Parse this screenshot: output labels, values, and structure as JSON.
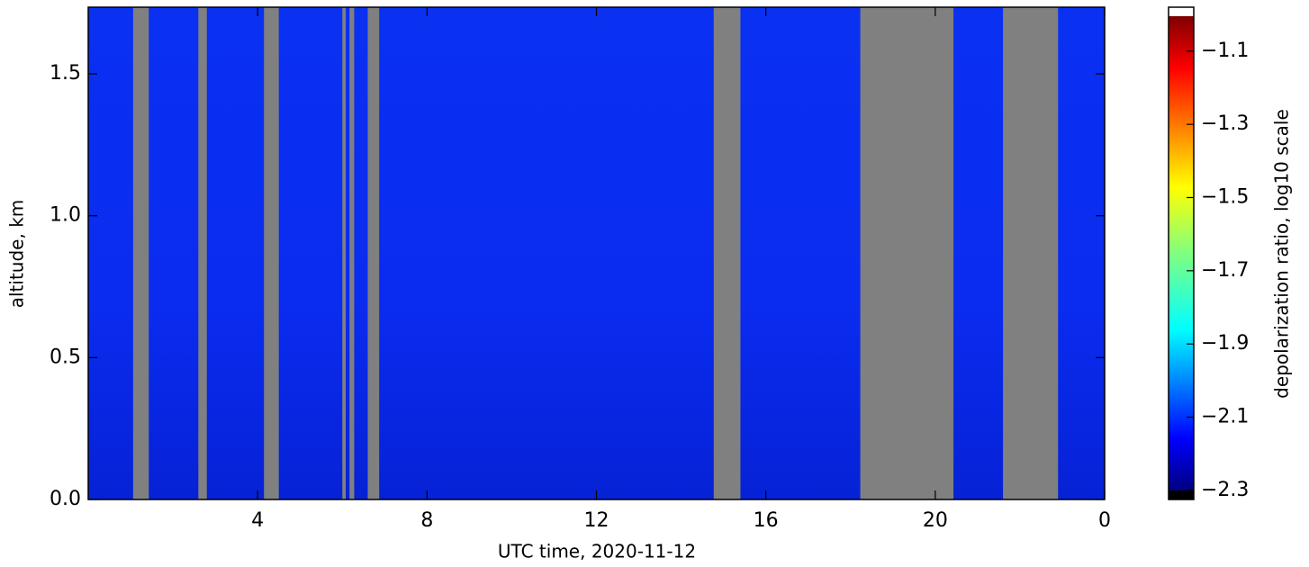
{
  "chart_data": {
    "type": "heatmap",
    "xlabel": "UTC time,  2020-11-12",
    "ylabel": "altitude, km",
    "colorbar_label": "depolarization ratio, log10 scale",
    "colormap": "jet",
    "field_color": "#0a2ff5",
    "no_data_color": "#808080",
    "xlim": [
      0,
      24
    ],
    "xticks": [
      4,
      8,
      12,
      16,
      20,
      {
        "value": 24,
        "label": "0"
      }
    ],
    "ylim": [
      0,
      1.735
    ],
    "yticks": [
      {
        "value": 0,
        "label": "0.0"
      },
      0.5,
      {
        "value": 1,
        "label": "1.0"
      },
      1.5
    ],
    "clim": [
      -2.325,
      -0.98
    ],
    "cticks": [
      {
        "value": -1.1,
        "label": "−1.1"
      },
      {
        "value": -1.3,
        "label": "−1.3"
      },
      {
        "value": -1.5,
        "label": "−1.5"
      },
      {
        "value": -1.7,
        "label": "−1.7"
      },
      {
        "value": -1.9,
        "label": "−1.9"
      },
      {
        "value": -2.1,
        "label": "−2.1"
      },
      {
        "value": -2.3,
        "label": "−2.3"
      }
    ],
    "no_data": [
      [
        1.06,
        1.43
      ],
      [
        2.6,
        2.8
      ],
      [
        4.15,
        4.5
      ],
      [
        6.0,
        6.08
      ],
      [
        6.17,
        6.28
      ],
      [
        6.6,
        6.87
      ],
      [
        14.77,
        15.4
      ],
      [
        18.23,
        20.43
      ],
      [
        21.6,
        22.9
      ]
    ]
  }
}
